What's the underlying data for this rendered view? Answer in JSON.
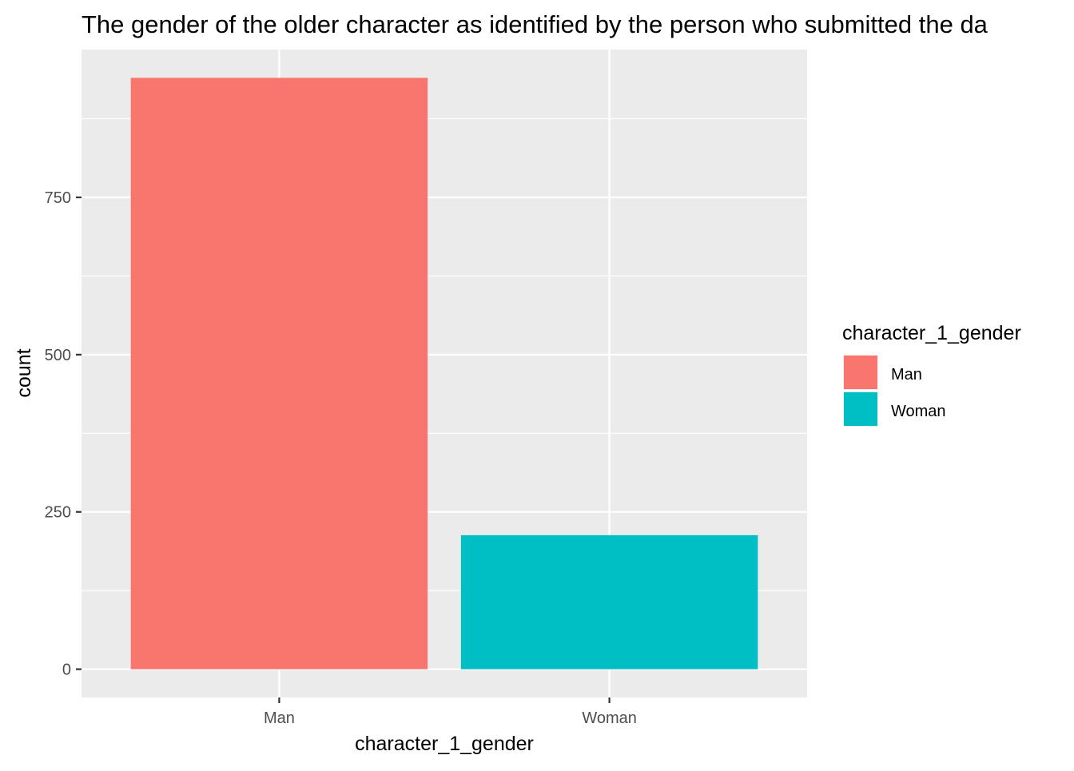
{
  "chart_data": {
    "type": "bar",
    "title": "The gender of the older character as identified by the person who submitted the da",
    "xlabel": "character_1_gender",
    "ylabel": "count",
    "categories": [
      "Man",
      "Woman"
    ],
    "values": [
      940,
      213
    ],
    "colors": [
      "#F8766D",
      "#00BFC4"
    ],
    "ylim": [
      -45,
      985
    ],
    "yticks": [
      0,
      250,
      500,
      750
    ],
    "ytick_labels": [
      "0",
      "250",
      "500",
      "750"
    ],
    "grid": true,
    "panel_background": "#EBEBEB",
    "legend": {
      "title": "character_1_gender",
      "position": "right",
      "entries": [
        {
          "label": "Man",
          "color": "#F8766D"
        },
        {
          "label": "Woman",
          "color": "#00BFC4"
        }
      ]
    }
  }
}
